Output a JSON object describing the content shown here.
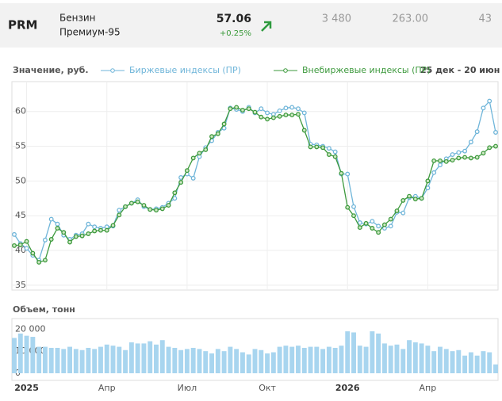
{
  "header": {
    "ticker": "PRM",
    "name": [
      "Бензин",
      "Премиум-95"
    ],
    "price": "57.06",
    "change": "+0.25%",
    "columns": [
      "3 480",
      "263.00",
      "43"
    ]
  },
  "chart_data": [
    {
      "type": "line",
      "title": "Значение, руб.",
      "date_range": "25 дек - 20 июн",
      "categories": [
        null,
        null,
        "2025",
        null,
        null,
        null,
        null,
        null,
        null,
        null,
        null,
        null,
        null,
        null,
        null,
        "Апр",
        null,
        null,
        null,
        null,
        null,
        null,
        null,
        null,
        null,
        null,
        null,
        null,
        "Июл",
        null,
        null,
        null,
        null,
        null,
        null,
        null,
        null,
        null,
        null,
        null,
        null,
        "Окт",
        null,
        null,
        null,
        null,
        null,
        null,
        null,
        null,
        null,
        null,
        null,
        null,
        "2026",
        null,
        null,
        null,
        null,
        null,
        null,
        null,
        null,
        null,
        null,
        null,
        null,
        "Апр",
        null,
        null,
        null,
        null,
        null,
        null,
        null,
        null,
        null,
        null,
        null
      ],
      "series": [
        {
          "name": "Биржевые индексы (ПР)",
          "color": "#6fb5d9",
          "values": [
            42.3,
            41,
            40.3,
            39.3,
            38.6,
            41.5,
            44.5,
            43.8,
            42.2,
            41.6,
            42.2,
            42.4,
            43.8,
            43.4,
            43.2,
            43.4,
            43.5,
            45.8,
            46.3,
            46.8,
            47.3,
            46.3,
            45.9,
            46,
            46.2,
            46.8,
            47.5,
            50.5,
            51,
            50.4,
            53.5,
            54.8,
            55.8,
            57,
            57.6,
            60.5,
            60.3,
            60,
            60.6,
            59.8,
            60.4,
            59.8,
            59.6,
            60.1,
            60.5,
            60.6,
            60.4,
            59.8,
            55.3,
            55.2,
            55,
            54.7,
            54.2,
            51,
            51,
            46.3,
            44,
            43.8,
            44.2,
            43.5,
            43.2,
            43.5,
            45.5,
            45.4,
            47.6,
            47.8,
            47.5,
            49,
            51.2,
            52.3,
            53.2,
            53.8,
            54.1,
            54.3,
            55.6,
            57.1,
            60.5,
            61.5,
            57
          ]
        },
        {
          "name": "Внебиржевые индексы (ПР)",
          "color": "#3e9a3e",
          "values": [
            40.7,
            40.8,
            41.3,
            39.6,
            38.3,
            38.6,
            41.6,
            43.2,
            42.6,
            41.2,
            42,
            42.1,
            42.4,
            42.8,
            42.9,
            42.9,
            43.6,
            45.1,
            46.3,
            46.8,
            47,
            46.5,
            45.9,
            45.8,
            46,
            46.5,
            48.3,
            49.8,
            51.5,
            53.3,
            54,
            54.5,
            56.4,
            56.8,
            58.2,
            60.4,
            60.6,
            60.2,
            60.4,
            59.9,
            59.2,
            58.9,
            59.1,
            59.3,
            59.5,
            59.5,
            59.6,
            57.3,
            54.9,
            54.9,
            54.8,
            53.8,
            53.5,
            51.1,
            46.2,
            45,
            43.3,
            43.9,
            43.2,
            42.6,
            43.7,
            44.5,
            45.7,
            47.2,
            47.8,
            47.4,
            47.5,
            50,
            52.9,
            52.9,
            52.8,
            53,
            53.3,
            53.4,
            53.3,
            53.4,
            54,
            54.8,
            55
          ]
        }
      ],
      "ylim": [
        34.3,
        64.3
      ],
      "yticks": [
        35,
        40,
        45,
        50,
        55,
        60
      ],
      "grid": true
    },
    {
      "type": "bar",
      "title": "Объем, тонн",
      "color": "#a8d5ef",
      "categories": [
        null,
        null,
        "2025",
        null,
        null,
        null,
        null,
        null,
        null,
        null,
        null,
        null,
        null,
        null,
        null,
        "Апр",
        null,
        null,
        null,
        null,
        null,
        null,
        null,
        null,
        null,
        null,
        null,
        null,
        "Июл",
        null,
        null,
        null,
        null,
        null,
        null,
        null,
        null,
        null,
        null,
        null,
        null,
        "Окт",
        null,
        null,
        null,
        null,
        null,
        null,
        null,
        null,
        null,
        null,
        null,
        null,
        "2026",
        null,
        null,
        null,
        null,
        null,
        null,
        null,
        null,
        null,
        null,
        null,
        null,
        "Апр",
        null,
        null,
        null,
        null,
        null,
        null,
        null,
        null,
        null,
        null,
        null
      ],
      "values": [
        16000,
        18000,
        17000,
        16500,
        12000,
        12000,
        11500,
        11500,
        11000,
        12000,
        11000,
        10500,
        11500,
        11000,
        12000,
        13000,
        12500,
        12000,
        10500,
        14000,
        13500,
        13500,
        14500,
        13000,
        15000,
        12000,
        11500,
        10500,
        11000,
        11500,
        11000,
        10000,
        9000,
        11000,
        10000,
        12000,
        11000,
        9500,
        8500,
        11000,
        10500,
        9000,
        9500,
        12000,
        12500,
        12000,
        12500,
        11500,
        12000,
        12000,
        11000,
        12000,
        11500,
        12500,
        19000,
        18500,
        12500,
        12000,
        19000,
        18000,
        13500,
        12500,
        13000,
        11000,
        15000,
        14000,
        13500,
        12500,
        10000,
        12000,
        11000,
        10000,
        10500,
        8000,
        9500,
        8000,
        10000,
        9500,
        4000
      ],
      "ylim": [
        0,
        28000
      ],
      "yticks": [
        0,
        {
          "value": 10000,
          "label": "10 000"
        },
        {
          "value": 20000,
          "label": "20 000"
        }
      ],
      "grid": true
    }
  ]
}
